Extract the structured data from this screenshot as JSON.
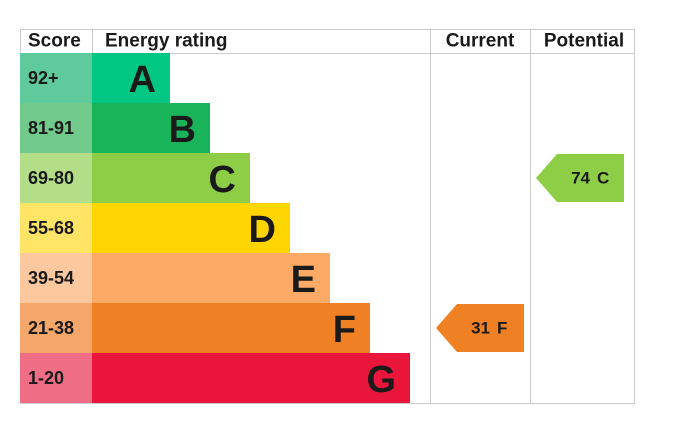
{
  "headers": {
    "score": "Score",
    "rating": "Energy rating",
    "current": "Current",
    "potential": "Potential"
  },
  "bands": [
    {
      "score": "92+",
      "letter": "A",
      "color": "#00c781",
      "score_color": "#5fcb9c"
    },
    {
      "score": "81-91",
      "letter": "B",
      "color": "#19b459",
      "score_color": "#72c98c"
    },
    {
      "score": "69-80",
      "letter": "C",
      "color": "#8dce46",
      "score_color": "#b4dd88"
    },
    {
      "score": "55-68",
      "letter": "D",
      "color": "#ffd500",
      "score_color": "#ffe466"
    },
    {
      "score": "39-54",
      "letter": "E",
      "color": "#fcaa65",
      "score_color": "#fdc89e"
    },
    {
      "score": "21-38",
      "letter": "F",
      "color": "#ef8023",
      "score_color": "#f4a66b"
    },
    {
      "score": "1-20",
      "letter": "G",
      "color": "#e9153b",
      "score_color": "#f06e85"
    }
  ],
  "current": {
    "value": 31,
    "letter": "F"
  },
  "potential": {
    "value": 74,
    "letter": "C"
  }
}
